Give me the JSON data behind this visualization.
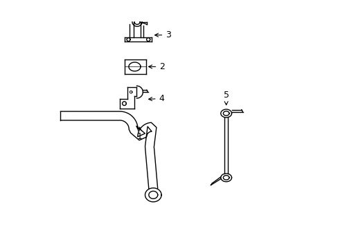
{
  "background_color": "#ffffff",
  "line_color": "#000000",
  "line_width": 1.0,
  "fig_width": 4.89,
  "fig_height": 3.6,
  "dpi": 100,
  "label_fontsize": 9
}
